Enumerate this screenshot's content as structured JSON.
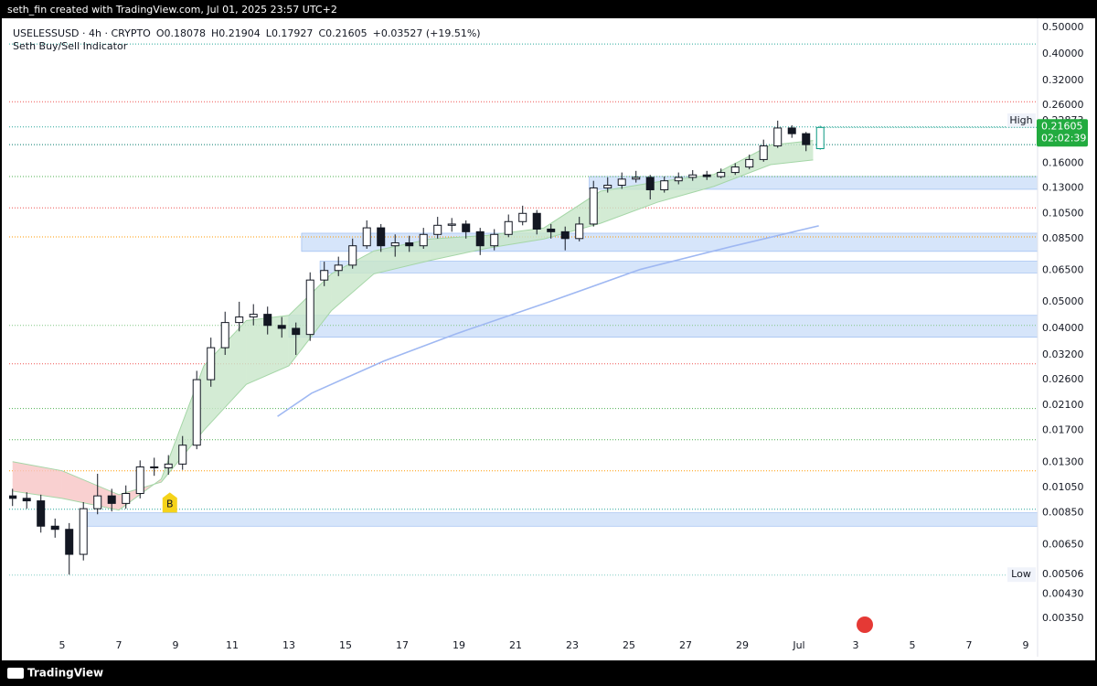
{
  "header": {
    "text": "seth_fin created with TradingView.com, Jul 01, 2025 23:57 UTC+2"
  },
  "footer": {
    "brand": "TradingView"
  },
  "chart_data": {
    "type": "candlestick",
    "title": "USELESSUSD · 4h · CRYPTO",
    "indicator": "Seth Buy/Sell Indicator",
    "ohlc_labels": [
      "O",
      "H",
      "L",
      "C"
    ],
    "change": "+0.03527 (+19.51%)",
    "high_label": "High",
    "low_label": "Low",
    "countdown": "02:02:39",
    "x": [
      3.25,
      3.75,
      4.25,
      4.75,
      5.25,
      5.75,
      6.25,
      6.75,
      7.25,
      7.75,
      8.25,
      8.75,
      9.25,
      9.75,
      10.25,
      10.75,
      11.25,
      11.75,
      12.25,
      12.75,
      13.25,
      13.75,
      14.25,
      14.75,
      15.25,
      15.75,
      16.25,
      16.75,
      17.25,
      17.75,
      18.25,
      18.75,
      19.25,
      19.75,
      20.25,
      20.75,
      21.25,
      21.75,
      22.25,
      22.75,
      23.25,
      23.75,
      24.25,
      24.75,
      25.25,
      25.75,
      26.25,
      26.75,
      27.25,
      27.75,
      28.25,
      28.75,
      29.25,
      29.75,
      30.25,
      30.75,
      31.25,
      31.75
    ],
    "open": [
      0.0098,
      0.0096,
      0.0094,
      0.0076,
      0.0074,
      0.006,
      0.0088,
      0.0098,
      0.0092,
      0.01,
      0.0125,
      0.0124,
      0.0128,
      0.015,
      0.026,
      0.034,
      0.042,
      0.044,
      0.045,
      0.041,
      0.04,
      0.038,
      0.06,
      0.065,
      0.068,
      0.08,
      0.093,
      0.08,
      0.082,
      0.08,
      0.088,
      0.095,
      0.096,
      0.09,
      0.08,
      0.088,
      0.098,
      0.105,
      0.092,
      0.09,
      0.085,
      0.096,
      0.13,
      0.133,
      0.14,
      0.142,
      0.128,
      0.138,
      0.142,
      0.145,
      0.143,
      0.148,
      0.155,
      0.165,
      0.185,
      0.215,
      0.205,
      0.18078
    ],
    "high": [
      0.0104,
      0.0101,
      0.0099,
      0.0081,
      0.0078,
      0.0093,
      0.0118,
      0.0104,
      0.0107,
      0.0132,
      0.0135,
      0.0138,
      0.0162,
      0.028,
      0.037,
      0.046,
      0.05,
      0.049,
      0.048,
      0.044,
      0.042,
      0.064,
      0.07,
      0.073,
      0.085,
      0.099,
      0.096,
      0.088,
      0.087,
      0.093,
      0.102,
      0.101,
      0.099,
      0.093,
      0.092,
      0.104,
      0.112,
      0.108,
      0.096,
      0.094,
      0.102,
      0.138,
      0.142,
      0.148,
      0.15,
      0.145,
      0.143,
      0.148,
      0.151,
      0.15,
      0.153,
      0.16,
      0.172,
      0.195,
      0.22873,
      0.22,
      0.208,
      0.21904
    ],
    "low": [
      0.009,
      0.0088,
      0.0072,
      0.0069,
      0.00506,
      0.0057,
      0.0084,
      0.0086,
      0.0088,
      0.0096,
      0.0116,
      0.0117,
      0.0122,
      0.0145,
      0.0245,
      0.032,
      0.039,
      0.041,
      0.038,
      0.037,
      0.032,
      0.036,
      0.057,
      0.062,
      0.066,
      0.078,
      0.076,
      0.073,
      0.076,
      0.078,
      0.085,
      0.09,
      0.085,
      0.074,
      0.077,
      0.086,
      0.095,
      0.088,
      0.085,
      0.077,
      0.083,
      0.094,
      0.125,
      0.129,
      0.136,
      0.118,
      0.125,
      0.134,
      0.138,
      0.139,
      0.141,
      0.145,
      0.152,
      0.162,
      0.182,
      0.198,
      0.177,
      0.17927
    ],
    "close": [
      0.0096,
      0.0094,
      0.0076,
      0.0074,
      0.006,
      0.0088,
      0.0098,
      0.0092,
      0.01,
      0.0125,
      0.0124,
      0.0128,
      0.015,
      0.026,
      0.034,
      0.042,
      0.044,
      0.045,
      0.041,
      0.04,
      0.038,
      0.06,
      0.065,
      0.068,
      0.08,
      0.093,
      0.08,
      0.082,
      0.08,
      0.088,
      0.095,
      0.096,
      0.09,
      0.08,
      0.088,
      0.098,
      0.105,
      0.092,
      0.09,
      0.085,
      0.096,
      0.13,
      0.133,
      0.14,
      0.142,
      0.128,
      0.138,
      0.142,
      0.145,
      0.143,
      0.148,
      0.155,
      0.165,
      0.185,
      0.215,
      0.205,
      0.187,
      0.21605
    ],
    "up_color": "#ffffff",
    "down_color": "#131722",
    "border_color": "#131722",
    "last_color": "#089981",
    "log_scale": true,
    "grid": false,
    "ylim": [
      0.00254,
      0.54
    ],
    "yticks": [
      {
        "value": 0.5,
        "label": "0.50000"
      },
      {
        "value": 0.4,
        "label": "0.40000"
      },
      {
        "value": 0.32,
        "label": "0.32000"
      },
      {
        "value": 0.26,
        "label": "0.26000"
      },
      {
        "value": 0.16,
        "label": "0.16000"
      },
      {
        "value": 0.13,
        "label": "0.13000"
      },
      {
        "value": 0.105,
        "label": "0.10500"
      },
      {
        "value": 0.085,
        "label": "0.08500"
      },
      {
        "value": 0.065,
        "label": "0.06500"
      },
      {
        "value": 0.05,
        "label": "0.05000"
      },
      {
        "value": 0.04,
        "label": "0.04000"
      },
      {
        "value": 0.032,
        "label": "0.03200"
      },
      {
        "value": 0.026,
        "label": "0.02600"
      },
      {
        "value": 0.021,
        "label": "0.02100"
      },
      {
        "value": 0.017,
        "label": "0.01700"
      },
      {
        "value": 0.013,
        "label": "0.01300"
      },
      {
        "value": 0.0105,
        "label": "0.01050"
      },
      {
        "value": 0.0085,
        "label": "0.00850"
      },
      {
        "value": 0.0065,
        "label": "0.00650"
      },
      {
        "value": 0.0043,
        "label": "0.00430"
      },
      {
        "value": 0.0035,
        "label": "0.00350"
      }
    ],
    "xlim": [
      3.13,
      39.42
    ],
    "xticks": [
      5,
      7,
      9,
      11,
      13,
      15,
      17,
      19,
      21,
      23,
      25,
      27,
      29,
      {
        "value": 31,
        "label": "Jul"
      },
      {
        "value": 33,
        "label": "3"
      },
      {
        "value": 35,
        "label": "5"
      },
      {
        "value": 37,
        "label": "7"
      },
      {
        "value": 39,
        "label": "9"
      }
    ],
    "levels": [
      {
        "value": 0.435,
        "color": "#26a69a"
      },
      {
        "value": 0.268,
        "color": "#ef5350"
      },
      {
        "value": 0.217,
        "color": "#26a69a"
      },
      {
        "value": 0.187,
        "color": "#00796b"
      },
      {
        "value": 0.143,
        "color": "#4caf50"
      },
      {
        "value": 0.11,
        "color": "#ef5350"
      },
      {
        "value": 0.0862,
        "color": "#ff9800"
      },
      {
        "value": 0.041,
        "color": "#81c784"
      },
      {
        "value": 0.0297,
        "color": "#ef5350"
      },
      {
        "value": 0.0204,
        "color": "#4caf50"
      },
      {
        "value": 0.0157,
        "color": "#4caf50"
      },
      {
        "value": 0.0121,
        "color": "#ff9800"
      },
      {
        "value": 0.00876,
        "color": "#26a69a"
      },
      {
        "value": 0.00504,
        "color": "#80cbc4"
      }
    ],
    "zones": [
      {
        "from": 23.6,
        "low": 0.1285,
        "high": 0.1431
      },
      {
        "from": 13.45,
        "low": 0.0763,
        "high": 0.0889
      },
      {
        "from": 14.1,
        "low": 0.0637,
        "high": 0.0703
      },
      {
        "from": 13.0,
        "low": 0.0371,
        "high": 0.0446
      },
      {
        "from": 5.7,
        "low": 0.0076,
        "high": 0.0085
      }
    ],
    "zone_color": "#bbd3f7",
    "cloud": {
      "x": [
        3.25,
        5,
        7,
        8.5,
        10,
        11.5,
        13,
        14.5,
        16,
        18,
        20,
        22,
        24,
        26,
        28,
        30,
        31.5
      ],
      "fast": [
        0.0102,
        0.0096,
        0.0087,
        0.0113,
        0.0292,
        0.0427,
        0.0446,
        0.0632,
        0.0766,
        0.0847,
        0.0873,
        0.0929,
        0.1265,
        0.1367,
        0.1456,
        0.1862,
        0.1935
      ],
      "slow": [
        0.01306,
        0.0121,
        0.0099,
        0.011,
        0.017,
        0.025,
        0.0292,
        0.0464,
        0.0632,
        0.0708,
        0.0784,
        0.0847,
        0.0966,
        0.1152,
        0.1317,
        0.1581,
        0.1644
      ],
      "up_color": "#c8e6c9",
      "down_color": "#f8c4c4"
    },
    "ma": {
      "x": [
        12.6,
        13.8,
        16.35,
        18.9,
        22.2,
        25.4,
        28.6,
        31.7
      ],
      "values": [
        0.0191,
        0.0232,
        0.0304,
        0.0382,
        0.05,
        0.0656,
        0.0794,
        0.0946
      ],
      "color": "#9fb8f2"
    },
    "signals": [
      {
        "label": "B",
        "x": 8.8,
        "y": 0.0092,
        "color": "#f5d31a"
      }
    ]
  }
}
